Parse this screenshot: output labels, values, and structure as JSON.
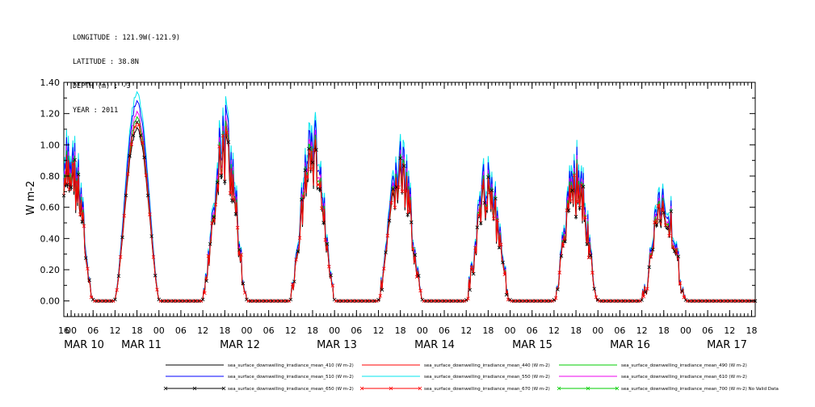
{
  "header": {
    "lines": [
      "LONGITUDE : 121.9W(-121.9)",
      "LATITUDE : 38.8N",
      "DEPTH (m) : -3",
      "YEAR : 2011"
    ]
  },
  "chart_data": {
    "type": "line",
    "title": "",
    "ylabel": "W m-2",
    "ylim": [
      -0.1,
      1.4
    ],
    "yticks": [
      "0.00",
      "0.20",
      "0.40",
      "0.60",
      "0.80",
      "1.00",
      "1.20",
      "1.40"
    ],
    "xlim_hours": [
      -8,
      181
    ],
    "hour_tick_labels": [
      "16",
      "00",
      "06",
      "12",
      "18",
      "00",
      "06",
      "12",
      "18",
      "00",
      "06",
      "12",
      "18",
      "00",
      "06",
      "12",
      "18",
      "00",
      "06",
      "12",
      "18",
      "00",
      "06",
      "12",
      "18",
      "00",
      "06",
      "12",
      "18",
      "00",
      "06",
      "12",
      "18"
    ],
    "day_labels": [
      "MAR 10",
      "MAR 11",
      "MAR 12",
      "MAR 13",
      "MAR 14",
      "MAR 15",
      "MAR 16",
      "MAR 17"
    ],
    "series": [
      {
        "name": "sea_surface_downwelling_irradiance_mean_410 (W m-2)",
        "color": "#000000"
      },
      {
        "name": "sea_surface_downwelling_irradiance_mean_440 (W m-2)",
        "color": "#ff0000"
      },
      {
        "name": "sea_surface_downwelling_irradiance_mean_490 (W m-2)",
        "color": "#00cc00"
      },
      {
        "name": "sea_surface_downwelling_irradiance_mean_510 (W m-2)",
        "color": "#0000ff"
      },
      {
        "name": "sea_surface_downwelling_irradiance_mean_550 (W m-2)",
        "color": "#00e5ee"
      },
      {
        "name": "sea_surface_downwelling_irradiance_mean_610 (W m-2)",
        "color": "#ee00ee"
      },
      {
        "name": "sea_surface_downwelling_irradiance_mean_650 (W m-2)",
        "color": "#000000",
        "marker": "x"
      },
      {
        "name": "sea_surface_downwelling_irradiance_mean_670 (W m-2)",
        "color": "#ff0000",
        "marker": "x"
      },
      {
        "name": "sea_surface_downwelling_irradiance_mean_700 (W m-2) No Valid Data",
        "color": "#00cc00",
        "marker": "x"
      }
    ],
    "daily_peaks": [
      {
        "day": "MAR 10",
        "peak_hour": -6,
        "peak": 1.0
      },
      {
        "day": "MAR 11",
        "peak_hour": 12,
        "peak": 1.15
      },
      {
        "day": "MAR 12",
        "peak_hour": 36,
        "peak": 1.15
      },
      {
        "day": "MAR 13",
        "peak_hour": 60,
        "peak": 1.1
      },
      {
        "day": "MAR 14",
        "peak_hour": 84,
        "peak": 0.95
      },
      {
        "day": "MAR 15",
        "peak_hour": 108,
        "peak": 0.85
      },
      {
        "day": "MAR 16",
        "peak_hour": 132,
        "peak": 0.9
      },
      {
        "day": "MAR 17",
        "peak_hour": 156,
        "peak": 0.7
      }
    ]
  }
}
